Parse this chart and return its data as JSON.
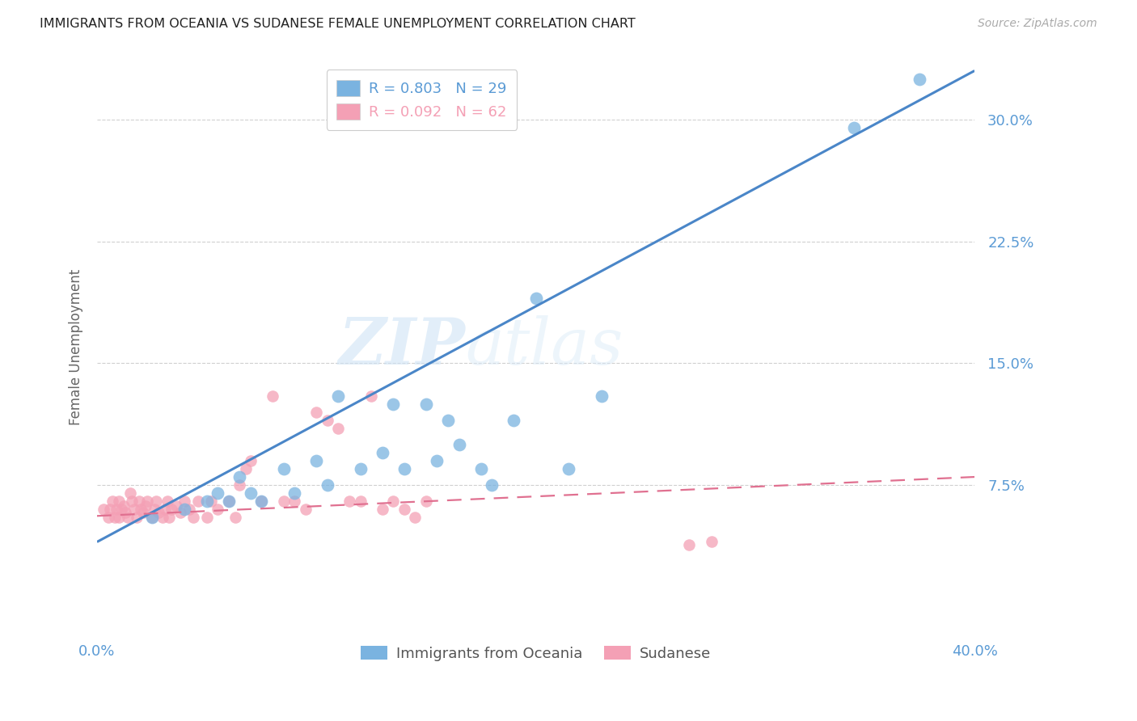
{
  "title": "IMMIGRANTS FROM OCEANIA VS SUDANESE FEMALE UNEMPLOYMENT CORRELATION CHART",
  "source": "Source: ZipAtlas.com",
  "ylabel": "Female Unemployment",
  "ytick_labels": [
    "7.5%",
    "15.0%",
    "22.5%",
    "30.0%"
  ],
  "ytick_values": [
    0.075,
    0.15,
    0.225,
    0.3
  ],
  "xtick_left_label": "0.0%",
  "xtick_right_label": "40.0%",
  "xlim": [
    0.0,
    0.4
  ],
  "ylim": [
    -0.015,
    0.335
  ],
  "legend1_r": "0.803",
  "legend1_n": "29",
  "legend2_r": "0.092",
  "legend2_n": "62",
  "blue_color": "#7ab3e0",
  "pink_color": "#f4a0b5",
  "axis_label_color": "#5b9bd5",
  "pink_label_color": "#f4a0b5",
  "watermark_line1": "ZIP",
  "watermark_line2": "atlas",
  "blue_scatter_x": [
    0.025,
    0.04,
    0.05,
    0.055,
    0.06,
    0.065,
    0.07,
    0.075,
    0.085,
    0.09,
    0.1,
    0.105,
    0.11,
    0.12,
    0.13,
    0.135,
    0.14,
    0.15,
    0.155,
    0.16,
    0.165,
    0.175,
    0.18,
    0.19,
    0.2,
    0.215,
    0.23,
    0.345,
    0.375
  ],
  "blue_scatter_y": [
    0.055,
    0.06,
    0.065,
    0.07,
    0.065,
    0.08,
    0.07,
    0.065,
    0.085,
    0.07,
    0.09,
    0.075,
    0.13,
    0.085,
    0.095,
    0.125,
    0.085,
    0.125,
    0.09,
    0.115,
    0.1,
    0.085,
    0.075,
    0.115,
    0.19,
    0.085,
    0.13,
    0.295,
    0.325
  ],
  "pink_scatter_x": [
    0.003,
    0.005,
    0.006,
    0.007,
    0.008,
    0.009,
    0.01,
    0.01,
    0.011,
    0.012,
    0.013,
    0.014,
    0.015,
    0.016,
    0.017,
    0.018,
    0.019,
    0.02,
    0.021,
    0.022,
    0.023,
    0.025,
    0.026,
    0.027,
    0.028,
    0.03,
    0.031,
    0.032,
    0.033,
    0.034,
    0.036,
    0.038,
    0.04,
    0.042,
    0.044,
    0.046,
    0.05,
    0.052,
    0.055,
    0.06,
    0.063,
    0.065,
    0.068,
    0.07,
    0.075,
    0.08,
    0.085,
    0.09,
    0.095,
    0.1,
    0.105,
    0.11,
    0.115,
    0.12,
    0.125,
    0.13,
    0.135,
    0.14,
    0.145,
    0.15,
    0.27,
    0.28
  ],
  "pink_scatter_y": [
    0.06,
    0.055,
    0.06,
    0.065,
    0.055,
    0.06,
    0.065,
    0.055,
    0.06,
    0.062,
    0.058,
    0.055,
    0.07,
    0.065,
    0.06,
    0.055,
    0.065,
    0.06,
    0.058,
    0.062,
    0.065,
    0.055,
    0.06,
    0.065,
    0.058,
    0.055,
    0.06,
    0.065,
    0.055,
    0.06,
    0.062,
    0.058,
    0.065,
    0.06,
    0.055,
    0.065,
    0.055,
    0.065,
    0.06,
    0.065,
    0.055,
    0.075,
    0.085,
    0.09,
    0.065,
    0.13,
    0.065,
    0.065,
    0.06,
    0.12,
    0.115,
    0.11,
    0.065,
    0.065,
    0.13,
    0.06,
    0.065,
    0.06,
    0.055,
    0.065,
    0.038,
    0.04
  ],
  "blue_line_x": [
    0.0,
    0.4
  ],
  "blue_line_y": [
    0.04,
    0.33
  ],
  "pink_line_x": [
    0.0,
    0.4
  ],
  "pink_line_y": [
    0.056,
    0.08
  ],
  "background_color": "#ffffff",
  "grid_color": "#d0d0d0"
}
